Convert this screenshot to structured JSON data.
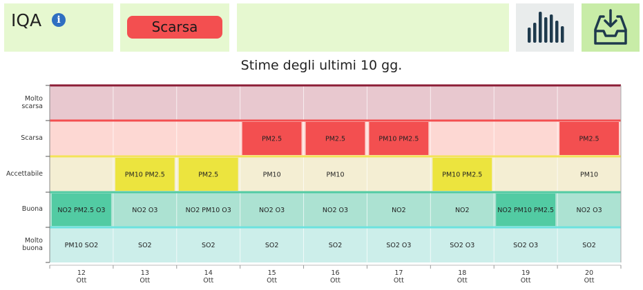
{
  "header": {
    "iqa_label": "IQA",
    "info_icon": "info-icon",
    "info_glyph": "i",
    "status_label": "Scarsa",
    "status_color": "#f34f50",
    "chart_button_icon": "bar-chart-icon",
    "download_button_icon": "download-tray-icon"
  },
  "subtitle": "Stime degli ultimi 10 gg.",
  "colors": {
    "molto_scarsa": "#e8c8cf",
    "scarsa_dim": "#fdd8d3",
    "scarsa_hi": "#f34f50",
    "accettabile_dim": "#f4eed3",
    "accettabile_hi": "#ece43e",
    "buona_dim": "#ace2d2",
    "buona_hi": "#52cba3",
    "molto_buona": "#cceeea",
    "line_molto_scarsa": "#8c1d36",
    "line_scarsa": "#f34f50",
    "line_accettabile": "#f3e358",
    "line_buona": "#52cba3",
    "line_molto_buona": "#6de2df"
  },
  "chart_data": {
    "type": "heatmap",
    "title": "Stime degli ultimi 10 gg.",
    "rows": [
      {
        "key": "molto_scarsa",
        "lines": [
          "Molto",
          "scarsa"
        ]
      },
      {
        "key": "scarsa",
        "lines": [
          "Scarsa"
        ]
      },
      {
        "key": "accettabile",
        "lines": [
          "Accettabile"
        ]
      },
      {
        "key": "buona",
        "lines": [
          "Buona"
        ]
      },
      {
        "key": "molto_buona",
        "lines": [
          "Molto",
          "buona"
        ]
      }
    ],
    "columns": [
      {
        "day": "12",
        "month": "Ott"
      },
      {
        "day": "13",
        "month": "Ott"
      },
      {
        "day": "14",
        "month": "Ott"
      },
      {
        "day": "15",
        "month": "Ott"
      },
      {
        "day": "16",
        "month": "Ott"
      },
      {
        "day": "17",
        "month": "Ott"
      },
      {
        "day": "18",
        "month": "Ott"
      },
      {
        "day": "19",
        "month": "Ott"
      },
      {
        "day": "20",
        "month": "Ott"
      }
    ],
    "cells": [
      [
        "",
        "",
        "",
        "",
        "",
        "",
        "",
        "",
        ""
      ],
      [
        "",
        "",
        "",
        "PM2.5",
        "PM2.5",
        "PM10 PM2.5",
        "",
        "",
        "PM2.5"
      ],
      [
        "",
        "PM10 PM2.5",
        "PM2.5",
        "PM10",
        "PM10",
        "",
        "PM10 PM2.5",
        "",
        "PM10"
      ],
      [
        "NO2 PM2.5 O3",
        "NO2 O3",
        "NO2 PM10 O3",
        "NO2 O3",
        "NO2 O3",
        "NO2",
        "NO2",
        "NO2 PM10 PM2.5",
        "NO2 O3"
      ],
      [
        "PM10 SO2",
        "SO2",
        "SO2",
        "SO2",
        "SO2",
        "SO2 O3",
        "SO2 O3",
        "SO2 O3",
        "SO2"
      ]
    ],
    "daily_level": [
      "buona",
      "accettabile",
      "accettabile",
      "scarsa",
      "scarsa",
      "scarsa",
      "accettabile",
      "buona",
      "scarsa"
    ]
  }
}
